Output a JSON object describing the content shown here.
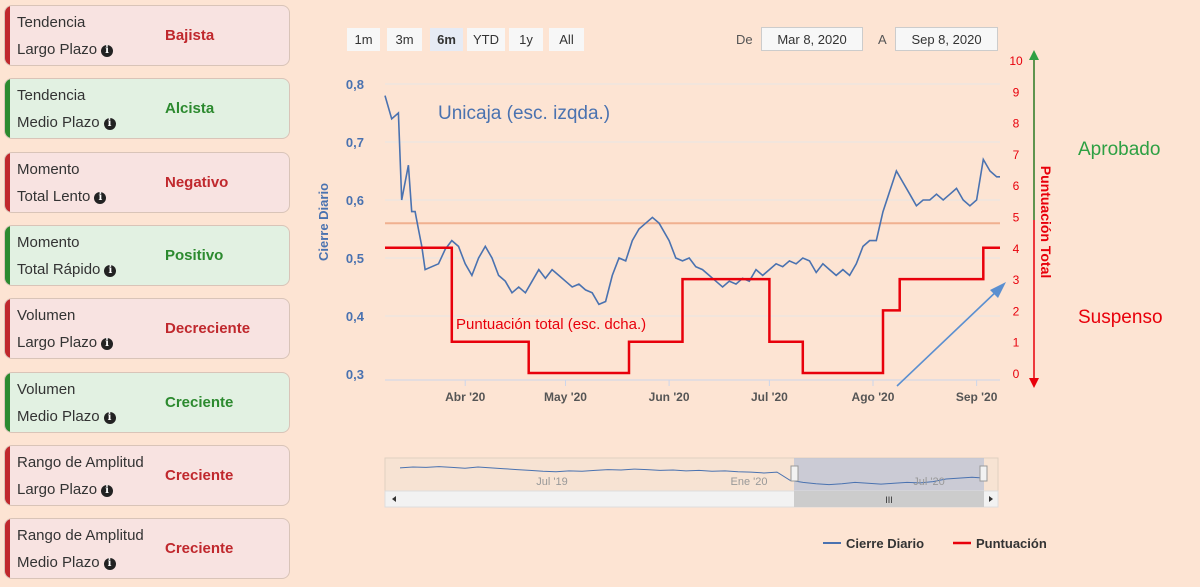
{
  "cards": [
    {
      "line1": "Tendencia",
      "line2": "Largo Plazo",
      "value": "Bajista",
      "status": "negative"
    },
    {
      "line1": "Tendencia",
      "line2": "Medio Plazo",
      "value": "Alcista",
      "status": "positive"
    },
    {
      "line1": "Momento",
      "line2": "Total Lento",
      "value": "Negativo",
      "status": "negative"
    },
    {
      "line1": "Momento",
      "line2": "Total Rápido",
      "value": "Positivo",
      "status": "positive"
    },
    {
      "line1": "Volumen",
      "line2": "Largo Plazo",
      "value": "Decreciente",
      "status": "negative"
    },
    {
      "line1": "Volumen",
      "line2": "Medio Plazo",
      "value": "Creciente",
      "status": "positive"
    },
    {
      "line1": "Rango de Amplitud",
      "line2": "Largo Plazo",
      "value": "Creciente",
      "status": "negative"
    },
    {
      "line1": "Rango de Amplitud",
      "line2": "Medio Plazo",
      "value": "Creciente",
      "status": "negative"
    }
  ],
  "range_selector": {
    "buttons": [
      "1m",
      "3m",
      "6m",
      "YTD",
      "1y",
      "All"
    ],
    "selected": "6m",
    "from_label": "De",
    "from_value": "Mar 8, 2020",
    "to_label": "A",
    "to_value": "Sep 8, 2020"
  },
  "annotations": {
    "series_title": "Unicaja (esc. izqda.)",
    "score_title": "Puntuación total (esc. dcha.)",
    "approved": "Aprobado",
    "failed": "Suspenso"
  },
  "colors": {
    "price": "#4a72b0",
    "score": "#e8000b",
    "threshold": "#f0b090",
    "approved": "#2ea043",
    "failed": "#e8000b",
    "arrow": "#5b8fd0"
  },
  "navigator": {
    "labels": [
      "Jul '19",
      "Ene '20",
      "Jul '20"
    ],
    "scroll_grip": "III"
  },
  "legend": [
    {
      "name": "Cierre Diario",
      "color": "#4a72b0"
    },
    {
      "name": "Puntuación",
      "color": "#e8000b"
    }
  ],
  "chart_data": {
    "type": "line",
    "x_ticks": [
      "Abr '20",
      "May '20",
      "Jun '20",
      "Jul '20",
      "Ago '20",
      "Sep '20"
    ],
    "x_tick_dates": [
      "2020-04-01",
      "2020-05-01",
      "2020-06-01",
      "2020-07-01",
      "2020-08-01",
      "2020-09-01"
    ],
    "xlim": [
      "2020-03-08",
      "2020-09-08"
    ],
    "left_axis": {
      "label": "Cierre Diario",
      "ylim": [
        0.3,
        0.8
      ],
      "ticks": [
        "0,3",
        "0,4",
        "0,5",
        "0,6",
        "0,7",
        "0,8"
      ],
      "tick_values": [
        0.3,
        0.4,
        0.5,
        0.6,
        0.7,
        0.8
      ]
    },
    "right_axis": {
      "label": "Puntuación Total",
      "ylim": [
        0,
        10
      ],
      "ticks": [
        "0",
        "1",
        "2",
        "3",
        "4",
        "5",
        "6",
        "7",
        "8",
        "9",
        "10"
      ],
      "tick_values": [
        0,
        1,
        2,
        3,
        4,
        5,
        6,
        7,
        8,
        9,
        10
      ]
    },
    "threshold": 0.56,
    "series": [
      {
        "name": "Cierre Diario",
        "axis": "left",
        "x": [
          "2020-03-08",
          "2020-03-10",
          "2020-03-12",
          "2020-03-13",
          "2020-03-15",
          "2020-03-16",
          "2020-03-17",
          "2020-03-18",
          "2020-03-19",
          "2020-03-20",
          "2020-03-22",
          "2020-03-24",
          "2020-03-26",
          "2020-03-28",
          "2020-03-30",
          "2020-04-01",
          "2020-04-03",
          "2020-04-05",
          "2020-04-07",
          "2020-04-09",
          "2020-04-11",
          "2020-04-13",
          "2020-04-15",
          "2020-04-17",
          "2020-04-19",
          "2020-04-21",
          "2020-04-23",
          "2020-04-25",
          "2020-04-27",
          "2020-04-29",
          "2020-05-01",
          "2020-05-03",
          "2020-05-05",
          "2020-05-07",
          "2020-05-09",
          "2020-05-11",
          "2020-05-13",
          "2020-05-15",
          "2020-05-17",
          "2020-05-19",
          "2020-05-21",
          "2020-05-23",
          "2020-05-25",
          "2020-05-27",
          "2020-05-29",
          "2020-06-01",
          "2020-06-03",
          "2020-06-05",
          "2020-06-07",
          "2020-06-09",
          "2020-06-11",
          "2020-06-13",
          "2020-06-15",
          "2020-06-17",
          "2020-06-19",
          "2020-06-21",
          "2020-06-23",
          "2020-06-25",
          "2020-06-27",
          "2020-06-29",
          "2020-07-01",
          "2020-07-03",
          "2020-07-05",
          "2020-07-07",
          "2020-07-09",
          "2020-07-11",
          "2020-07-13",
          "2020-07-15",
          "2020-07-17",
          "2020-07-19",
          "2020-07-21",
          "2020-07-23",
          "2020-07-25",
          "2020-07-27",
          "2020-07-29",
          "2020-07-31",
          "2020-08-02",
          "2020-08-04",
          "2020-08-06",
          "2020-08-08",
          "2020-08-10",
          "2020-08-12",
          "2020-08-14",
          "2020-08-16",
          "2020-08-18",
          "2020-08-20",
          "2020-08-22",
          "2020-08-24",
          "2020-08-26",
          "2020-08-28",
          "2020-08-30",
          "2020-09-01",
          "2020-09-03",
          "2020-09-05",
          "2020-09-07",
          "2020-09-08"
        ],
        "values": [
          0.78,
          0.74,
          0.75,
          0.6,
          0.66,
          0.58,
          0.58,
          0.55,
          0.52,
          0.48,
          0.485,
          0.49,
          0.515,
          0.53,
          0.52,
          0.49,
          0.47,
          0.5,
          0.52,
          0.5,
          0.47,
          0.46,
          0.44,
          0.45,
          0.44,
          0.46,
          0.48,
          0.465,
          0.48,
          0.47,
          0.46,
          0.45,
          0.455,
          0.445,
          0.44,
          0.42,
          0.425,
          0.47,
          0.5,
          0.495,
          0.53,
          0.55,
          0.56,
          0.57,
          0.56,
          0.53,
          0.5,
          0.495,
          0.5,
          0.485,
          0.48,
          0.47,
          0.46,
          0.45,
          0.46,
          0.455,
          0.465,
          0.46,
          0.48,
          0.47,
          0.48,
          0.49,
          0.485,
          0.495,
          0.49,
          0.5,
          0.495,
          0.475,
          0.49,
          0.48,
          0.47,
          0.48,
          0.47,
          0.49,
          0.52,
          0.53,
          0.53,
          0.58,
          0.615,
          0.65,
          0.63,
          0.61,
          0.59,
          0.6,
          0.6,
          0.61,
          0.6,
          0.61,
          0.62,
          0.6,
          0.59,
          0.6,
          0.67,
          0.65,
          0.64,
          0.64
        ]
      },
      {
        "name": "Puntuación",
        "axis": "right",
        "step": true,
        "x": [
          "2020-03-08",
          "2020-03-28",
          "2020-03-28",
          "2020-04-20",
          "2020-04-20",
          "2020-05-20",
          "2020-05-20",
          "2020-06-05",
          "2020-06-05",
          "2020-07-01",
          "2020-07-01",
          "2020-07-11",
          "2020-07-11",
          "2020-08-04",
          "2020-08-04",
          "2020-08-09",
          "2020-08-09",
          "2020-09-03",
          "2020-09-03",
          "2020-09-08"
        ],
        "values": [
          4,
          4,
          1,
          1,
          0,
          0,
          1,
          1,
          3,
          3,
          1,
          1,
          0,
          0,
          2,
          2,
          3,
          3,
          4,
          4
        ]
      }
    ]
  }
}
